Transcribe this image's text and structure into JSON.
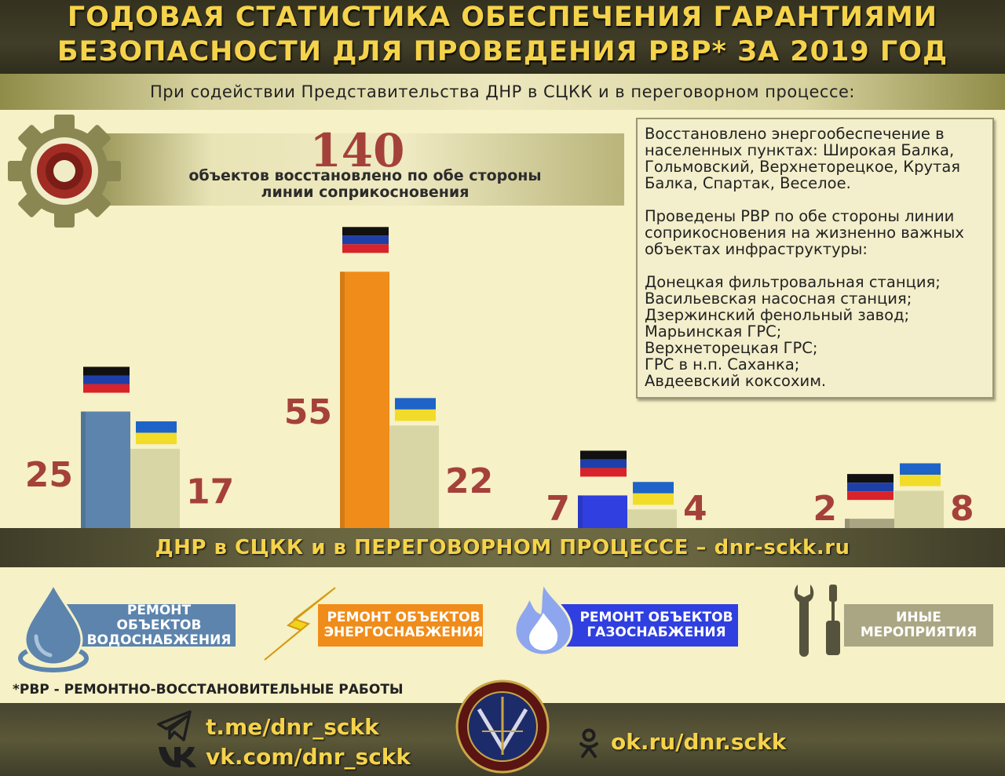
{
  "header": {
    "title_line1": "ГОДОВАЯ СТАТИСТИКА ОБЕСПЕЧЕНИЯ ГАРАНТИЯМИ",
    "title_line2": "БЕЗОПАСНОСТИ ДЛЯ ПРОВЕДЕНИЯ РВР* ЗА 2019 ГОД",
    "subtitle": "При содействии Представительства ДНР в СЦКК и в переговорном процессе:"
  },
  "headline": {
    "number": "140",
    "text_line1": "объектов восстановлено по обе стороны",
    "text_line2": "линии соприкосновения",
    "icon": "gear-icon"
  },
  "info_box": {
    "para1": "Восстановлено энергообеспечение в населенных пунктах: Широкая Балка, Гольмовский, Верхнеторецкое, Крутая Балка, Спартак, Веселое.",
    "para2": "Проведены РВР по обе стороны линии соприкосновения на жизненно важных объектах инфраструктуры:",
    "items": [
      "Донецкая фильтровальная станция;",
      "Васильевская насосная станция;",
      "Дзержинский фенольный завод;",
      "Марьинская ГРС;",
      "Верхнеторецкая ГРС;",
      "ГРС в н.п. Саханка;",
      "Авдеевский коксохим."
    ]
  },
  "chart_data": {
    "type": "bar",
    "categories": [
      "РЕМОНТ ОБЪЕКТОВ ВОДОСНАБЖЕНИЯ",
      "РЕМОНТ ОБЪЕКТОВ ЭНЕРГОСНАБЖЕНИЯ",
      "РЕМОНТ ОБЪЕКТОВ ГАЗОСНАБЖЕНИЯ",
      "ИНЫЕ МЕРОПРИЯТИЯ"
    ],
    "series": [
      {
        "flag": "dnr-flag-icon",
        "values": [
          25,
          55,
          7,
          2
        ],
        "colors": [
          "#5c84ad",
          "#f08c1a",
          "#2f3fe0",
          "#aaa683"
        ]
      },
      {
        "flag": "ukraine-flag-icon",
        "values": [
          17,
          22,
          4,
          8
        ],
        "color": "#d9d6a6"
      }
    ],
    "ylim": [
      0,
      56
    ],
    "grid": false,
    "legend": "bottom"
  },
  "legend": {
    "items": [
      {
        "label_line1": "РЕМОНТ ОБЪЕКТОВ",
        "label_line2": "ВОДОСНАБЖЕНИЯ",
        "icon": "water-drop-icon",
        "color": "#5c84ad"
      },
      {
        "label_line1": "РЕМОНТ ОБЪЕКТОВ",
        "label_line2": "ЭНЕРГОСНАБЖЕНИЯ",
        "icon": "lightning-icon",
        "color": "#f08c1a"
      },
      {
        "label_line1": "РЕМОНТ ОБЪЕКТОВ",
        "label_line2": "ГАЗОСНАБЖЕНИЯ",
        "icon": "gas-flame-icon",
        "color": "#2f3fe0"
      },
      {
        "label_line1": "ИНЫЕ",
        "label_line2": "МЕРОПРИЯТИЯ",
        "icon": "tools-icon",
        "color": "#aaa683"
      }
    ]
  },
  "banner": "ДНР в СЦКК и в ПЕРЕГОВОРНОМ ПРОЦЕССЕ – dnr-sckk.ru",
  "footnote": "*РВР - РЕМОНТНО-ВОССТАНОВИТЕЛЬНЫЕ РАБОТЫ",
  "footer": {
    "telegram": "t.me/dnr_sckk",
    "vk": "vk.com/dnr_sckk",
    "ok": "ok.ru/dnr.sckk",
    "emblem": "emblem-seal-icon"
  }
}
